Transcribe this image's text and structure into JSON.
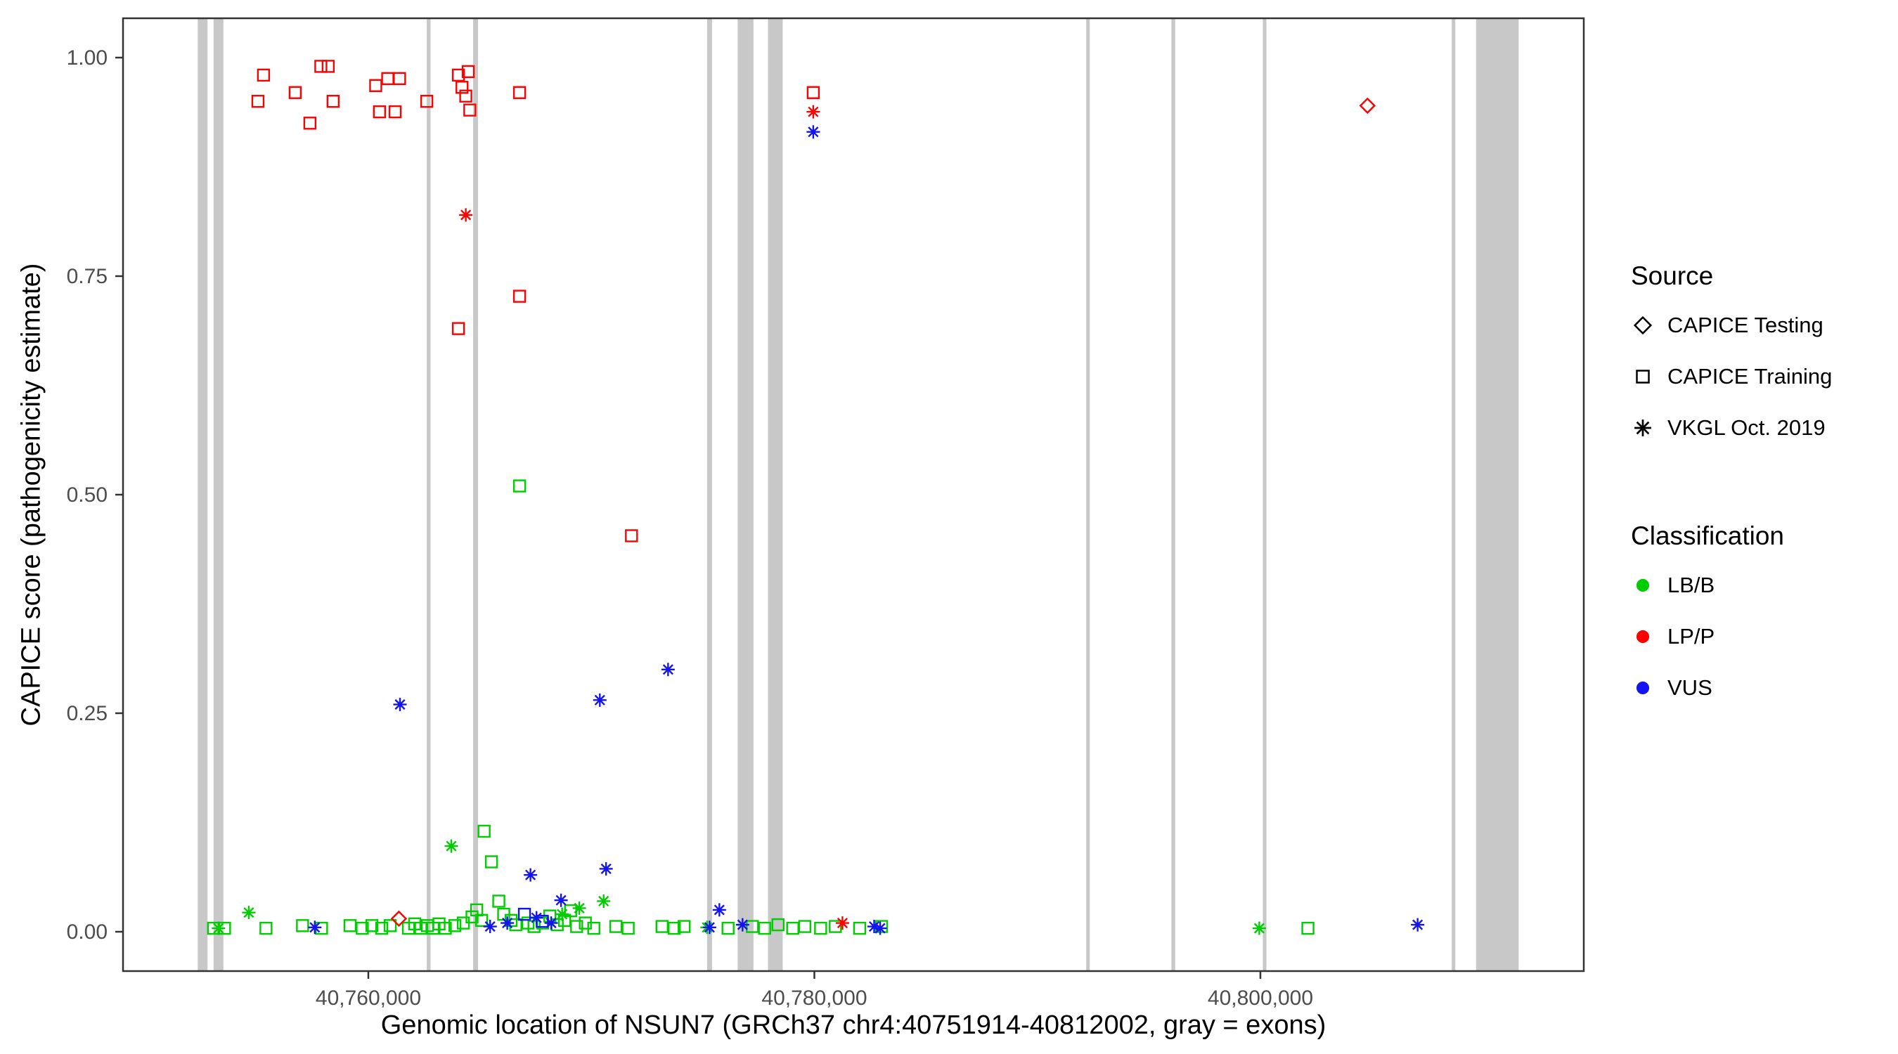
{
  "legend": {
    "source_title": "Source",
    "source_items": [
      {
        "label": "CAPICE Testing",
        "marker": "diamond"
      },
      {
        "label": "CAPICE Training",
        "marker": "square"
      },
      {
        "label": "VKGL Oct. 2019",
        "marker": "asterisk"
      }
    ],
    "classification_title": "Classification",
    "classification_items": [
      {
        "label": "LB/B",
        "color": "#00CD00"
      },
      {
        "label": "LP/P",
        "color": "#FF0000"
      },
      {
        "label": "VUS",
        "color": "#1414F0"
      }
    ]
  },
  "chart_data": {
    "type": "scatter",
    "title": "",
    "xlabel": "Genomic location of NSUN7 (GRCh37 chr4:40751914-40812002, gray = exons)",
    "ylabel": "CAPICE score (pathogenicity estimate)",
    "x_domain": [
      40749000,
      40814500
    ],
    "y_domain": [
      -0.045,
      1.045
    ],
    "x_ticks": [
      {
        "value": 40760000,
        "label": "40,760,000"
      },
      {
        "value": 40780000,
        "label": "40,780,000"
      },
      {
        "value": 40800000,
        "label": "40,800,000"
      }
    ],
    "y_ticks": [
      {
        "value": 0.0,
        "label": "0.00"
      },
      {
        "value": 0.25,
        "label": "0.25"
      },
      {
        "value": 0.5,
        "label": "0.50"
      },
      {
        "value": 0.75,
        "label": "0.75"
      },
      {
        "value": 1.0,
        "label": "1.00"
      }
    ],
    "grid": false,
    "legend_position": "right",
    "exon_color": "#C8C8C8",
    "colors": {
      "LB/B": "#00CD00",
      "LP/P": "#FF0000",
      "VUS": "#1414F0"
    },
    "marker_by_source": {
      "CAPICE Testing": "diamond",
      "CAPICE Training": "square",
      "VKGL Oct. 2019": "asterisk"
    },
    "source_codes": {
      "T": "CAPICE Training",
      "D": "CAPICE Testing",
      "V": "VKGL Oct. 2019"
    },
    "class_codes": {
      "B": "LB/B",
      "P": "LP/P",
      "U": "VUS"
    },
    "exons": [
      [
        40752350,
        40752790
      ],
      [
        40753060,
        40753500
      ],
      [
        40762620,
        40762790
      ],
      [
        40764700,
        40764920
      ],
      [
        40775190,
        40775410
      ],
      [
        40776560,
        40777270
      ],
      [
        40777920,
        40778580
      ],
      [
        40792190,
        40792350
      ],
      [
        40796010,
        40796180
      ],
      [
        40800110,
        40800270
      ],
      [
        40808580,
        40808740
      ],
      [
        40809670,
        40811580
      ]
    ],
    "point_format": [
      "position",
      "score",
      "source_code",
      "classification_code"
    ],
    "points": [
      [
        40755300,
        0.98,
        "T",
        "P"
      ],
      [
        40755050,
        0.95,
        "T",
        "P"
      ],
      [
        40756720,
        0.96,
        "T",
        "P"
      ],
      [
        40757380,
        0.925,
        "T",
        "P"
      ],
      [
        40757870,
        0.99,
        "T",
        "P"
      ],
      [
        40758200,
        0.99,
        "T",
        "P"
      ],
      [
        40758420,
        0.95,
        "T",
        "P"
      ],
      [
        40760330,
        0.968,
        "T",
        "P"
      ],
      [
        40760500,
        0.938,
        "T",
        "P"
      ],
      [
        40760870,
        0.976,
        "T",
        "P"
      ],
      [
        40761200,
        0.938,
        "T",
        "P"
      ],
      [
        40761400,
        0.976,
        "T",
        "P"
      ],
      [
        40762620,
        0.95,
        "T",
        "P"
      ],
      [
        40764040,
        0.98,
        "T",
        "P"
      ],
      [
        40764200,
        0.966,
        "T",
        "P"
      ],
      [
        40764370,
        0.956,
        "T",
        "P"
      ],
      [
        40764480,
        0.984,
        "T",
        "P"
      ],
      [
        40764550,
        0.94,
        "T",
        "P"
      ],
      [
        40766780,
        0.96,
        "T",
        "P"
      ],
      [
        40764040,
        0.69,
        "T",
        "P"
      ],
      [
        40766780,
        0.727,
        "T",
        "P"
      ],
      [
        40771800,
        0.453,
        "T",
        "P"
      ],
      [
        40779950,
        0.96,
        "T",
        "P"
      ],
      [
        40764370,
        0.82,
        "V",
        "P"
      ],
      [
        40779950,
        0.938,
        "V",
        "P"
      ],
      [
        40781260,
        0.01,
        "V",
        "P"
      ],
      [
        40804800,
        0.945,
        "D",
        "P"
      ],
      [
        40761370,
        0.015,
        "D",
        "P"
      ],
      [
        40779950,
        0.915,
        "V",
        "U"
      ],
      [
        40761420,
        0.26,
        "V",
        "U"
      ],
      [
        40770380,
        0.265,
        "V",
        "U"
      ],
      [
        40773440,
        0.3,
        "V",
        "U"
      ],
      [
        40767270,
        0.065,
        "V",
        "U"
      ],
      [
        40770660,
        0.072,
        "V",
        "U"
      ],
      [
        40768640,
        0.036,
        "V",
        "U"
      ],
      [
        40775740,
        0.025,
        "V",
        "U"
      ],
      [
        40757600,
        0.005,
        "V",
        "U"
      ],
      [
        40765460,
        0.006,
        "V",
        "U"
      ],
      [
        40766230,
        0.01,
        "V",
        "U"
      ],
      [
        40767540,
        0.016,
        "V",
        "U"
      ],
      [
        40768200,
        0.01,
        "V",
        "U"
      ],
      [
        40775300,
        0.005,
        "V",
        "U"
      ],
      [
        40776780,
        0.008,
        "V",
        "U"
      ],
      [
        40782680,
        0.006,
        "V",
        "U"
      ],
      [
        40782950,
        0.004,
        "V",
        "U"
      ],
      [
        40807050,
        0.008,
        "V",
        "U"
      ],
      [
        40767000,
        0.02,
        "T",
        "U"
      ],
      [
        40767800,
        0.012,
        "T",
        "U"
      ],
      [
        40753280,
        0.004,
        "V",
        "B"
      ],
      [
        40754640,
        0.022,
        "V",
        "B"
      ],
      [
        40763720,
        0.098,
        "V",
        "B"
      ],
      [
        40768690,
        0.02,
        "V",
        "B"
      ],
      [
        40769460,
        0.027,
        "V",
        "B"
      ],
      [
        40770550,
        0.035,
        "V",
        "B"
      ],
      [
        40775190,
        0.005,
        "V",
        "B"
      ],
      [
        40799950,
        0.004,
        "V",
        "B"
      ],
      [
        40766780,
        0.51,
        "T",
        "B"
      ],
      [
        40765190,
        0.115,
        "T",
        "B"
      ],
      [
        40765520,
        0.08,
        "T",
        "B"
      ],
      [
        40765850,
        0.035,
        "T",
        "B"
      ],
      [
        40764650,
        0.017,
        "T",
        "B"
      ],
      [
        40764860,
        0.025,
        "T",
        "B"
      ],
      [
        40765080,
        0.013,
        "T",
        "B"
      ],
      [
        40764260,
        0.01,
        "T",
        "B"
      ],
      [
        40753060,
        0.004,
        "T",
        "B"
      ],
      [
        40753550,
        0.004,
        "T",
        "B"
      ],
      [
        40755410,
        0.004,
        "T",
        "B"
      ],
      [
        40757050,
        0.007,
        "T",
        "B"
      ],
      [
        40757900,
        0.004,
        "T",
        "B"
      ],
      [
        40759180,
        0.007,
        "T",
        "B"
      ],
      [
        40759730,
        0.004,
        "T",
        "B"
      ],
      [
        40760160,
        0.007,
        "T",
        "B"
      ],
      [
        40760600,
        0.004,
        "T",
        "B"
      ],
      [
        40760980,
        0.007,
        "T",
        "B"
      ],
      [
        40761800,
        0.004,
        "T",
        "B"
      ],
      [
        40762080,
        0.009,
        "T",
        "B"
      ],
      [
        40762350,
        0.004,
        "T",
        "B"
      ],
      [
        40762650,
        0.007,
        "T",
        "B"
      ],
      [
        40762900,
        0.004,
        "T",
        "B"
      ],
      [
        40763170,
        0.009,
        "T",
        "B"
      ],
      [
        40763450,
        0.004,
        "T",
        "B"
      ],
      [
        40763880,
        0.007,
        "T",
        "B"
      ],
      [
        40766070,
        0.02,
        "T",
        "B"
      ],
      [
        40766400,
        0.013,
        "T",
        "B"
      ],
      [
        40766610,
        0.008,
        "T",
        "B"
      ],
      [
        40767160,
        0.01,
        "T",
        "B"
      ],
      [
        40767430,
        0.006,
        "T",
        "B"
      ],
      [
        40767820,
        0.01,
        "T",
        "B"
      ],
      [
        40768140,
        0.018,
        "T",
        "B"
      ],
      [
        40768470,
        0.008,
        "T",
        "B"
      ],
      [
        40768800,
        0.013,
        "T",
        "B"
      ],
      [
        40769070,
        0.024,
        "T",
        "B"
      ],
      [
        40769340,
        0.006,
        "T",
        "B"
      ],
      [
        40769730,
        0.01,
        "T",
        "B"
      ],
      [
        40770110,
        0.004,
        "T",
        "B"
      ],
      [
        40771100,
        0.006,
        "T",
        "B"
      ],
      [
        40771650,
        0.004,
        "T",
        "B"
      ],
      [
        40773170,
        0.006,
        "T",
        "B"
      ],
      [
        40773720,
        0.004,
        "T",
        "B"
      ],
      [
        40774160,
        0.006,
        "T",
        "B"
      ],
      [
        40776130,
        0.004,
        "T",
        "B"
      ],
      [
        40777220,
        0.006,
        "T",
        "B"
      ],
      [
        40777770,
        0.004,
        "T",
        "B"
      ],
      [
        40778370,
        0.008,
        "T",
        "B"
      ],
      [
        40779030,
        0.004,
        "T",
        "B"
      ],
      [
        40779570,
        0.006,
        "T",
        "B"
      ],
      [
        40780280,
        0.004,
        "T",
        "B"
      ],
      [
        40780940,
        0.006,
        "T",
        "B"
      ],
      [
        40782030,
        0.004,
        "T",
        "B"
      ],
      [
        40783010,
        0.006,
        "T",
        "B"
      ],
      [
        40802130,
        0.004,
        "T",
        "B"
      ]
    ]
  }
}
